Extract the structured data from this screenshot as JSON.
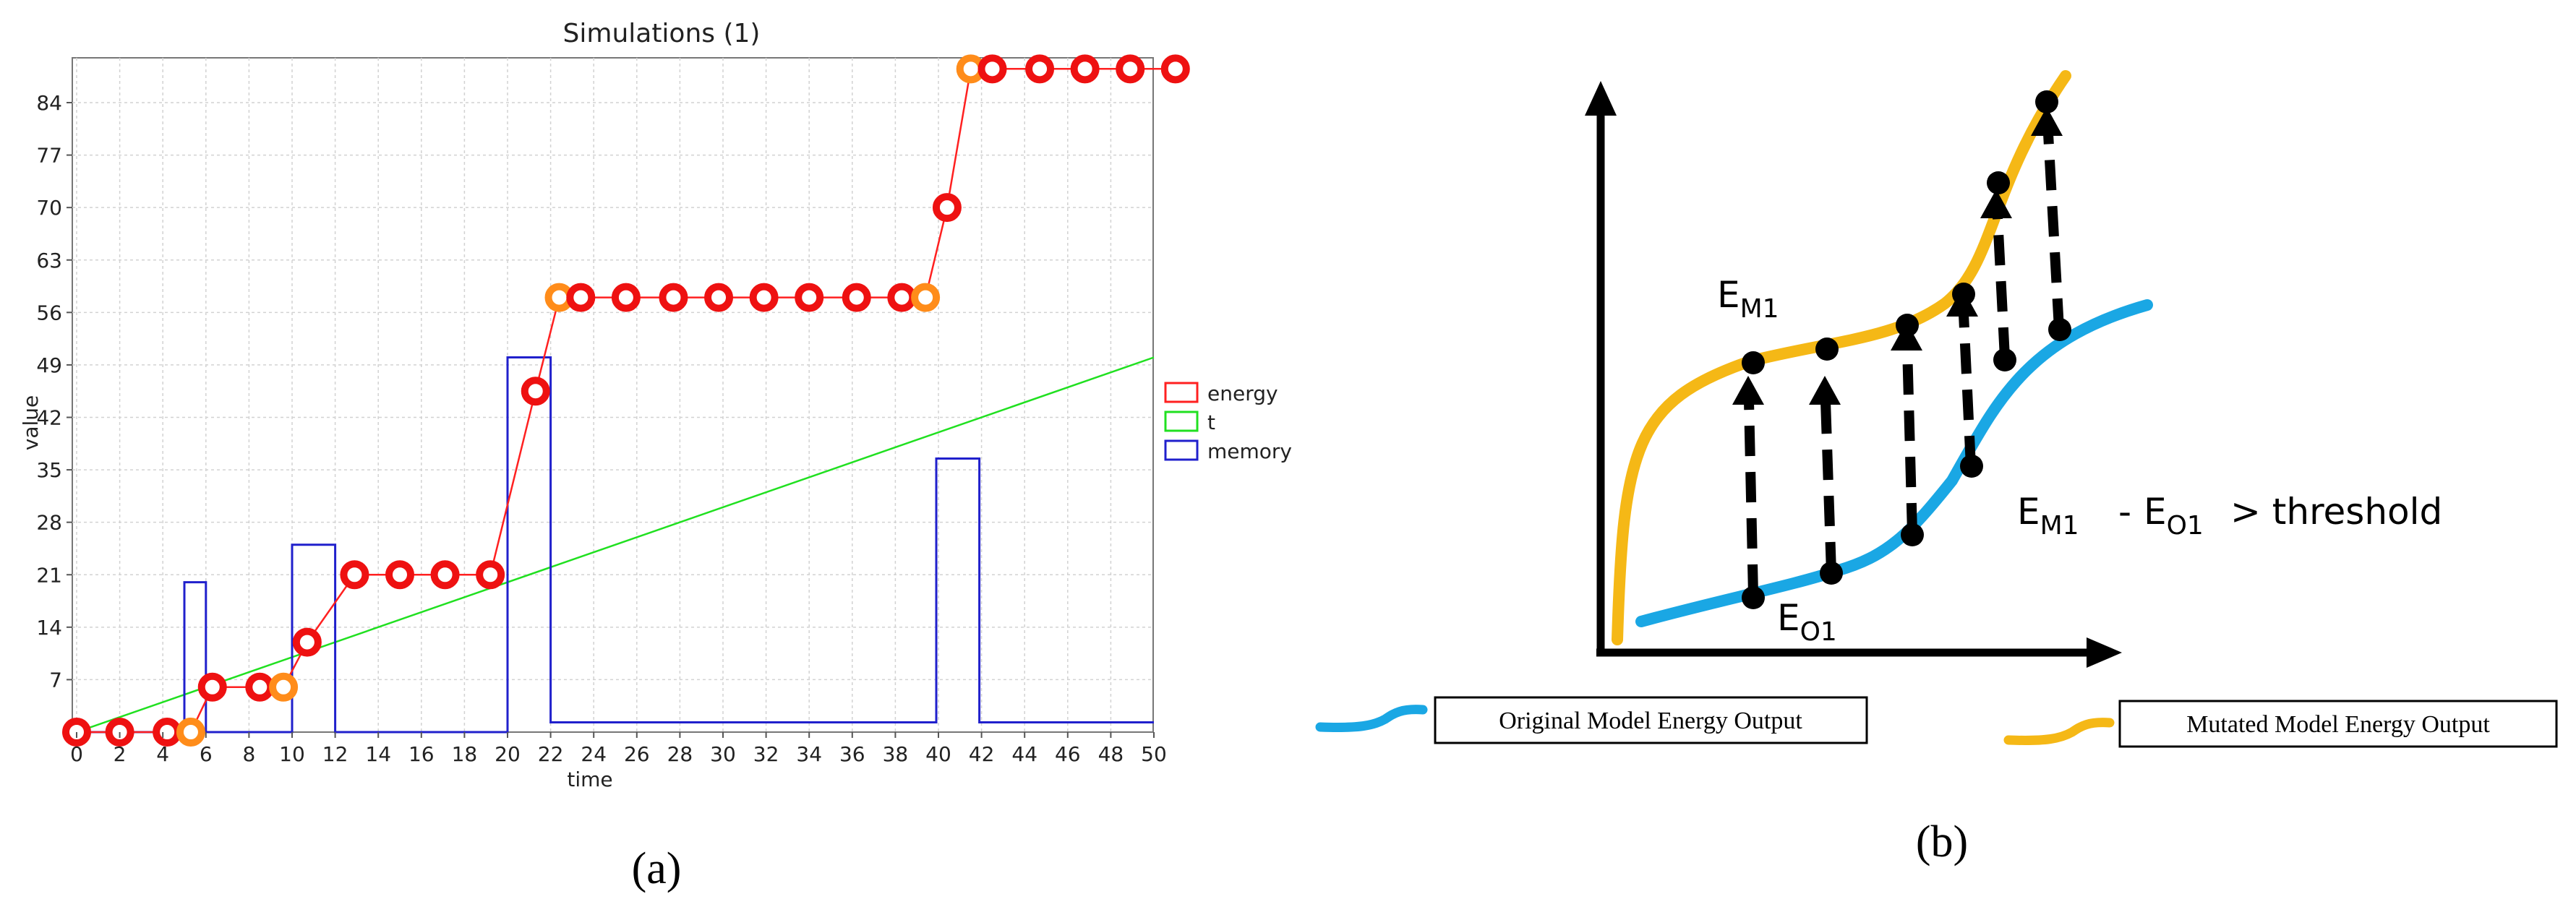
{
  "figure_labels": {
    "a": "(a)",
    "b": "(b)"
  },
  "chart_data": [
    {
      "type": "line",
      "title": "Simulations (1)",
      "xlabel": "time",
      "ylabel": "value",
      "xlim": [
        0,
        50
      ],
      "ylim": [
        0,
        91
      ],
      "grid": true,
      "legend_position": "right",
      "x_ticks": [
        0,
        2,
        4,
        6,
        8,
        10,
        12,
        14,
        16,
        18,
        20,
        22,
        24,
        26,
        28,
        30,
        32,
        34,
        36,
        38,
        40,
        42,
        44,
        46,
        48,
        50
      ],
      "y_ticks": [
        7,
        14,
        21,
        28,
        35,
        42,
        49,
        56,
        63,
        70,
        77,
        84
      ],
      "colors": {
        "energy": "#ff2020",
        "t": "#20e020",
        "memory": "#2020cc",
        "marker_red": "#ee1111",
        "marker_orange": "#ff8c1a"
      },
      "series": [
        {
          "name": "energy",
          "points": [
            {
              "x": 0,
              "y": 0,
              "marker": "red"
            },
            {
              "x": 2,
              "y": 0,
              "marker": "red"
            },
            {
              "x": 4.2,
              "y": 0,
              "marker": "red"
            },
            {
              "x": 5.3,
              "y": 0,
              "marker": "orange"
            },
            {
              "x": 6.3,
              "y": 6,
              "marker": "red"
            },
            {
              "x": 8.5,
              "y": 6,
              "marker": "red"
            },
            {
              "x": 9.6,
              "y": 6,
              "marker": "orange"
            },
            {
              "x": 10.7,
              "y": 12,
              "marker": "red"
            },
            {
              "x": 12.9,
              "y": 21,
              "marker": "red"
            },
            {
              "x": 15,
              "y": 21,
              "marker": "red"
            },
            {
              "x": 17.1,
              "y": 21,
              "marker": "red"
            },
            {
              "x": 19.2,
              "y": 21,
              "marker": "red"
            },
            {
              "x": 21.3,
              "y": 45.5,
              "marker": "red"
            },
            {
              "x": 22.4,
              "y": 58,
              "marker": "orange"
            },
            {
              "x": 23.4,
              "y": 58,
              "marker": "red"
            },
            {
              "x": 25.5,
              "y": 58,
              "marker": "red"
            },
            {
              "x": 27.7,
              "y": 58,
              "marker": "red"
            },
            {
              "x": 29.8,
              "y": 58,
              "marker": "red"
            },
            {
              "x": 31.9,
              "y": 58,
              "marker": "red"
            },
            {
              "x": 34,
              "y": 58,
              "marker": "red"
            },
            {
              "x": 36.2,
              "y": 58,
              "marker": "red"
            },
            {
              "x": 38.3,
              "y": 58,
              "marker": "red"
            },
            {
              "x": 39.4,
              "y": 58,
              "marker": "orange"
            },
            {
              "x": 40.4,
              "y": 70,
              "marker": "red"
            },
            {
              "x": 41.5,
              "y": 88.5,
              "marker": "orange"
            },
            {
              "x": 42.5,
              "y": 88.5,
              "marker": "red"
            },
            {
              "x": 44.7,
              "y": 88.5,
              "marker": "red"
            },
            {
              "x": 46.8,
              "y": 88.5,
              "marker": "red"
            },
            {
              "x": 48.9,
              "y": 88.5,
              "marker": "red"
            },
            {
              "x": 51,
              "y": 88.5,
              "marker": "red"
            }
          ]
        },
        {
          "name": "t",
          "points": [
            {
              "x": 0,
              "y": 0
            },
            {
              "x": 50,
              "y": 50
            }
          ]
        },
        {
          "name": "memory",
          "points": [
            {
              "x": 0,
              "y": 0
            },
            {
              "x": 5,
              "y": 0
            },
            {
              "x": 5,
              "y": 20
            },
            {
              "x": 6,
              "y": 20
            },
            {
              "x": 6,
              "y": 0
            },
            {
              "x": 10,
              "y": 0
            },
            {
              "x": 10,
              "y": 25
            },
            {
              "x": 12,
              "y": 25
            },
            {
              "x": 12,
              "y": 0
            },
            {
              "x": 20,
              "y": 0
            },
            {
              "x": 20,
              "y": 50
            },
            {
              "x": 22,
              "y": 50
            },
            {
              "x": 22,
              "y": 1.3
            },
            {
              "x": 39.9,
              "y": 1.3
            },
            {
              "x": 39.9,
              "y": 36.5
            },
            {
              "x": 41.9,
              "y": 36.5
            },
            {
              "x": 41.9,
              "y": 1.3
            },
            {
              "x": 50,
              "y": 1.3
            }
          ]
        }
      ]
    },
    {
      "type": "line",
      "title": "",
      "xlabel": "",
      "ylabel": "",
      "colors": {
        "original": "#1aa7e4",
        "mutated": "#f5b816"
      },
      "series": [
        {
          "name": "Original Model Energy Output"
        },
        {
          "name": "Mutated Model Energy Output"
        }
      ],
      "annotations": {
        "em1": {
          "main": "E",
          "sub": "M1"
        },
        "eo1": {
          "main": "E",
          "sub": "O1"
        },
        "formula": {
          "a_main": "E",
          "a_sub": "M1",
          "minus": "-",
          "b_main": "E",
          "b_sub": "O1",
          "tail": "> threshold"
        }
      },
      "legend": [
        {
          "label": "Original Model Energy Output",
          "color": "#1aa7e4"
        },
        {
          "label": "Mutated Model Energy Output",
          "color": "#f5b816"
        }
      ]
    }
  ]
}
